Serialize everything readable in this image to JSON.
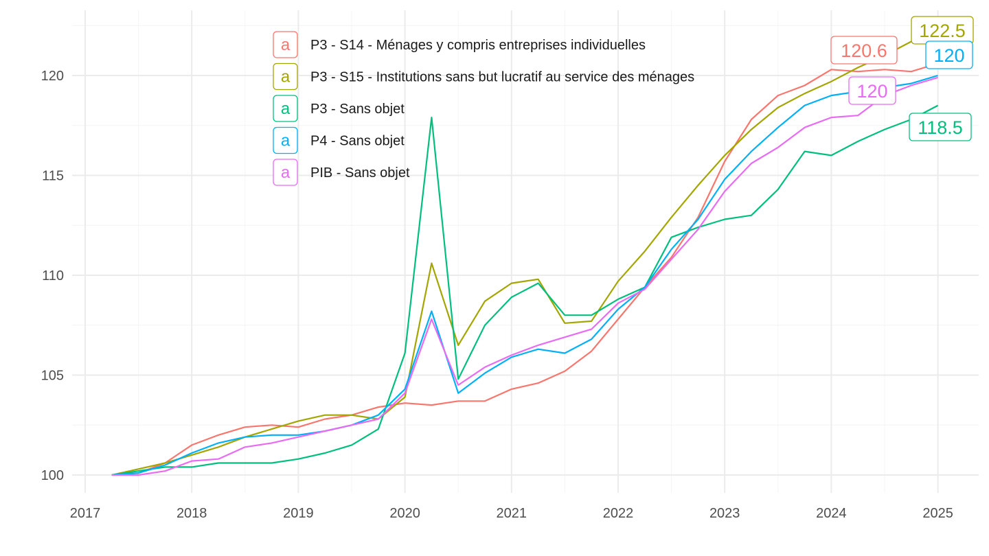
{
  "chart_data": {
    "type": "line",
    "title": "",
    "xlabel": "",
    "ylabel": "",
    "xlim": [
      2016.9,
      2025.4
    ],
    "ylim": [
      99.5,
      122.7
    ],
    "x_ticks": [
      {
        "value": 2017,
        "label": "2017"
      },
      {
        "value": 2018,
        "label": "2018"
      },
      {
        "value": 2019,
        "label": "2019"
      },
      {
        "value": 2020,
        "label": "2020"
      },
      {
        "value": 2021,
        "label": "2021"
      },
      {
        "value": 2022,
        "label": "2022"
      },
      {
        "value": 2023,
        "label": "2023"
      },
      {
        "value": 2024,
        "label": "2024"
      },
      {
        "value": 2025,
        "label": "2025"
      }
    ],
    "y_ticks": [
      {
        "value": 100,
        "label": "100"
      },
      {
        "value": 105,
        "label": "105"
      },
      {
        "value": 110,
        "label": "110"
      },
      {
        "value": 115,
        "label": "115"
      },
      {
        "value": 120,
        "label": "120"
      }
    ],
    "grid": true,
    "legend_position": "top-center",
    "legend_key_glyph": "a",
    "x": [
      2017.25,
      2017.5,
      2017.75,
      2018.0,
      2018.25,
      2018.5,
      2018.75,
      2019.0,
      2019.25,
      2019.5,
      2019.75,
      2020.0,
      2020.25,
      2020.5,
      2020.75,
      2021.0,
      2021.25,
      2021.5,
      2021.75,
      2022.0,
      2022.25,
      2022.5,
      2022.75,
      2023.0,
      2023.25,
      2023.5,
      2023.75,
      2024.0,
      2024.25,
      2024.5,
      2024.75,
      2025.0
    ],
    "series": [
      {
        "name": "P3 - S14 - Ménages y compris entreprises individuelles",
        "color": "#F8766D",
        "values": [
          100.0,
          100.1,
          100.6,
          101.5,
          102.0,
          102.4,
          102.5,
          102.4,
          102.8,
          103.0,
          103.4,
          103.6,
          103.5,
          103.7,
          103.7,
          104.3,
          104.6,
          105.2,
          106.2,
          107.8,
          109.4,
          110.9,
          112.9,
          115.7,
          117.8,
          119.0,
          119.5,
          120.3,
          120.2,
          120.3,
          120.2,
          120.6
        ],
        "end_label": "120.6"
      },
      {
        "name": "P3 - S15 - Institutions sans but lucratif au service des ménages",
        "color": "#A3A500",
        "values": [
          100.0,
          100.3,
          100.6,
          101.0,
          101.4,
          101.9,
          102.3,
          102.7,
          103.0,
          103.0,
          102.8,
          103.9,
          110.6,
          106.5,
          108.7,
          109.6,
          109.8,
          107.6,
          107.7,
          109.7,
          111.2,
          112.9,
          114.5,
          116.0,
          117.3,
          118.4,
          119.1,
          119.7,
          120.4,
          121.0,
          121.7,
          122.5
        ],
        "end_label": "122.5"
      },
      {
        "name": "P3 - Sans objet",
        "color": "#00BF7D",
        "values": [
          100.0,
          100.2,
          100.4,
          100.4,
          100.6,
          100.6,
          100.6,
          100.8,
          101.1,
          101.5,
          102.3,
          106.1,
          117.9,
          104.8,
          107.5,
          108.9,
          109.6,
          108.0,
          108.0,
          108.8,
          109.4,
          111.9,
          112.4,
          112.8,
          113.0,
          114.3,
          116.2,
          116.0,
          116.7,
          117.3,
          117.8,
          118.5
        ],
        "end_label": "118.5"
      },
      {
        "name": "P4 - Sans objet",
        "color": "#00B0F6",
        "values": [
          100.0,
          100.1,
          100.5,
          101.1,
          101.6,
          101.9,
          102.0,
          102.0,
          102.2,
          102.5,
          103.0,
          104.3,
          108.2,
          104.1,
          105.1,
          105.9,
          106.3,
          106.1,
          106.8,
          108.3,
          109.4,
          111.3,
          112.8,
          114.8,
          116.2,
          117.4,
          118.5,
          119.0,
          119.2,
          119.4,
          119.6,
          120.0
        ],
        "end_label": "120"
      },
      {
        "name": "PIB - Sans objet",
        "color": "#E76BF3",
        "values": [
          100.0,
          100.0,
          100.2,
          100.7,
          100.8,
          101.4,
          101.6,
          101.9,
          102.2,
          102.5,
          102.8,
          104.1,
          107.8,
          104.5,
          105.4,
          106.0,
          106.5,
          106.9,
          107.3,
          108.6,
          109.3,
          110.8,
          112.3,
          114.2,
          115.6,
          116.4,
          117.4,
          117.9,
          118.0,
          119.0,
          119.5,
          119.9
        ],
        "end_label": "120"
      }
    ]
  }
}
